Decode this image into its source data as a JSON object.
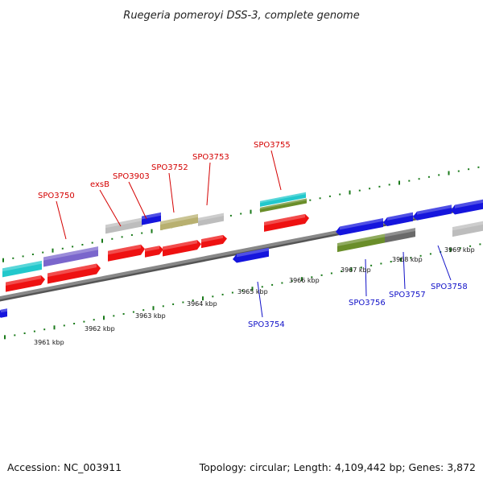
{
  "title": "Ruegeria pomeroyi DSS-3, complete genome",
  "footer": {
    "accession": "Accession: NC_003911",
    "topology": "Topology: circular; Length: 4,109,442 bp; Genes: 3,872"
  },
  "colors": {
    "red": "#ee1111",
    "blue": "#1515dd",
    "cyan": "#22c8cc",
    "lavender": "#7a66cc",
    "olive": "#b8b070",
    "green": "#6a8e2a",
    "gray": "#bdbdbd",
    "darkgray": "#6a6a6a",
    "axis": "#888888",
    "tick": "#1a7a1a",
    "label_red": "#d40000",
    "label_blue": "#1010c8"
  },
  "ticks": [
    "3961 kbp",
    "3962 kbp",
    "3963 kbp",
    "3964 kbp",
    "3965 kbp",
    "3966 kbp",
    "3967 kbp",
    "3968 kbp",
    "3969 kbp"
  ],
  "gene_labels": [
    {
      "name": "SPO3750",
      "strand": "+"
    },
    {
      "name": "exsB",
      "strand": "+"
    },
    {
      "name": "SPO3903",
      "strand": "+"
    },
    {
      "name": "SPO3752",
      "strand": "+"
    },
    {
      "name": "SPO3753",
      "strand": "+"
    },
    {
      "name": "SPO3755",
      "strand": "+"
    },
    {
      "name": "SPO3754",
      "strand": "-"
    },
    {
      "name": "SPO3756",
      "strand": "-"
    },
    {
      "name": "SPO3757",
      "strand": "-"
    },
    {
      "name": "SPO3758",
      "strand": "-"
    }
  ]
}
